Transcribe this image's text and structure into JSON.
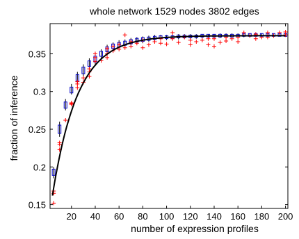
{
  "chart_data": {
    "type": "scatter",
    "title": "whole network 1529 nodes 3802 edges",
    "xlabel": "number of expression profiles",
    "ylabel": "fraction of inference",
    "xlim": [
      2,
      202
    ],
    "ylim": [
      0.145,
      0.39
    ],
    "xticks": [
      20,
      40,
      60,
      80,
      100,
      120,
      140,
      160,
      180,
      200
    ],
    "yticks": [
      0.15,
      0.2,
      0.25,
      0.3,
      0.35
    ],
    "ytick_labels": [
      "0.15",
      "0.2",
      "0.25",
      "0.3",
      "0.35"
    ],
    "grid": false,
    "series": [
      {
        "marker": "box",
        "color": "#0000cc",
        "x": [
          5,
          10,
          15,
          20,
          25,
          30,
          35,
          40,
          45,
          50,
          55,
          60,
          65,
          70,
          75,
          80,
          85,
          90,
          95,
          100,
          105,
          110,
          115,
          120,
          125,
          130,
          135,
          140,
          145,
          150,
          155,
          160,
          165,
          170,
          175,
          180,
          185,
          190,
          195,
          200
        ],
        "y": [
          0.193,
          0.25,
          0.282,
          0.302,
          0.318,
          0.328,
          0.337,
          0.343,
          0.35,
          0.356,
          0.36,
          0.362,
          0.364,
          0.366,
          0.368,
          0.369,
          0.37,
          0.371,
          0.372,
          0.372,
          0.372,
          0.373,
          0.373,
          0.373,
          0.373,
          0.374,
          0.374,
          0.374,
          0.374,
          0.374,
          0.374,
          0.374,
          0.375,
          0.375,
          0.375,
          0.375,
          0.375,
          0.375,
          0.375,
          0.375
        ],
        "ylow": [
          0.185,
          0.24,
          0.275,
          0.296,
          0.31,
          0.32,
          0.331,
          0.336,
          0.344,
          0.35,
          0.354,
          0.357,
          0.359,
          0.361,
          0.363,
          0.364,
          0.366,
          0.367,
          0.368,
          0.368,
          0.369,
          0.369,
          0.37,
          0.37,
          0.37,
          0.371,
          0.371,
          0.371,
          0.371,
          0.372,
          0.372,
          0.372,
          0.372,
          0.372,
          0.373,
          0.373,
          0.373,
          0.373,
          0.373,
          0.373
        ],
        "yhigh": [
          0.2,
          0.26,
          0.29,
          0.31,
          0.326,
          0.336,
          0.344,
          0.35,
          0.356,
          0.362,
          0.365,
          0.368,
          0.369,
          0.371,
          0.372,
          0.373,
          0.374,
          0.375,
          0.375,
          0.375,
          0.375,
          0.376,
          0.376,
          0.376,
          0.376,
          0.376,
          0.376,
          0.376,
          0.377,
          0.377,
          0.377,
          0.377,
          0.377,
          0.377,
          0.377,
          0.377,
          0.377,
          0.377,
          0.377,
          0.377
        ]
      },
      {
        "marker": "plus",
        "color": "#ff0000",
        "points": [
          [
            5,
            0.152
          ],
          [
            5,
            0.165
          ],
          [
            5,
            0.168
          ],
          [
            10,
            0.223
          ],
          [
            10,
            0.23
          ],
          [
            10,
            0.232
          ],
          [
            15,
            0.262
          ],
          [
            20,
            0.283
          ],
          [
            20,
            0.285
          ],
          [
            20,
            0.284
          ],
          [
            25,
            0.305
          ],
          [
            25,
            0.31
          ],
          [
            25,
            0.313
          ],
          [
            30,
            0.312
          ],
          [
            30,
            0.318
          ],
          [
            35,
            0.32
          ],
          [
            35,
            0.326
          ],
          [
            35,
            0.33
          ],
          [
            40,
            0.34
          ],
          [
            40,
            0.345
          ],
          [
            40,
            0.35
          ],
          [
            45,
            0.341
          ],
          [
            50,
            0.345
          ],
          [
            50,
            0.35
          ],
          [
            50,
            0.357
          ],
          [
            55,
            0.354
          ],
          [
            55,
            0.36
          ],
          [
            60,
            0.356
          ],
          [
            60,
            0.362
          ],
          [
            65,
            0.358
          ],
          [
            65,
            0.375
          ],
          [
            70,
            0.36
          ],
          [
            70,
            0.366
          ],
          [
            75,
            0.364
          ],
          [
            80,
            0.358
          ],
          [
            80,
            0.368
          ],
          [
            85,
            0.362
          ],
          [
            90,
            0.366
          ],
          [
            95,
            0.364
          ],
          [
            95,
            0.37
          ],
          [
            100,
            0.363
          ],
          [
            105,
            0.37
          ],
          [
            105,
            0.378
          ],
          [
            110,
            0.365
          ],
          [
            115,
            0.372
          ],
          [
            120,
            0.362
          ],
          [
            120,
            0.368
          ],
          [
            125,
            0.366
          ],
          [
            130,
            0.368
          ],
          [
            135,
            0.362
          ],
          [
            135,
            0.37
          ],
          [
            140,
            0.36
          ],
          [
            140,
            0.37
          ],
          [
            145,
            0.365
          ],
          [
            150,
            0.367
          ],
          [
            150,
            0.372
          ],
          [
            155,
            0.37
          ],
          [
            160,
            0.366
          ],
          [
            160,
            0.372
          ],
          [
            165,
            0.378
          ],
          [
            170,
            0.374
          ],
          [
            175,
            0.37
          ],
          [
            175,
            0.376
          ],
          [
            180,
            0.372
          ],
          [
            185,
            0.378
          ],
          [
            185,
            0.372
          ],
          [
            190,
            0.374
          ],
          [
            195,
            0.378
          ],
          [
            200,
            0.375
          ],
          [
            200,
            0.379
          ]
        ]
      },
      {
        "marker": "line",
        "color": "#000000",
        "fit": {
          "a": 0.374,
          "b": 0.212,
          "k": 0.047
        }
      }
    ]
  }
}
